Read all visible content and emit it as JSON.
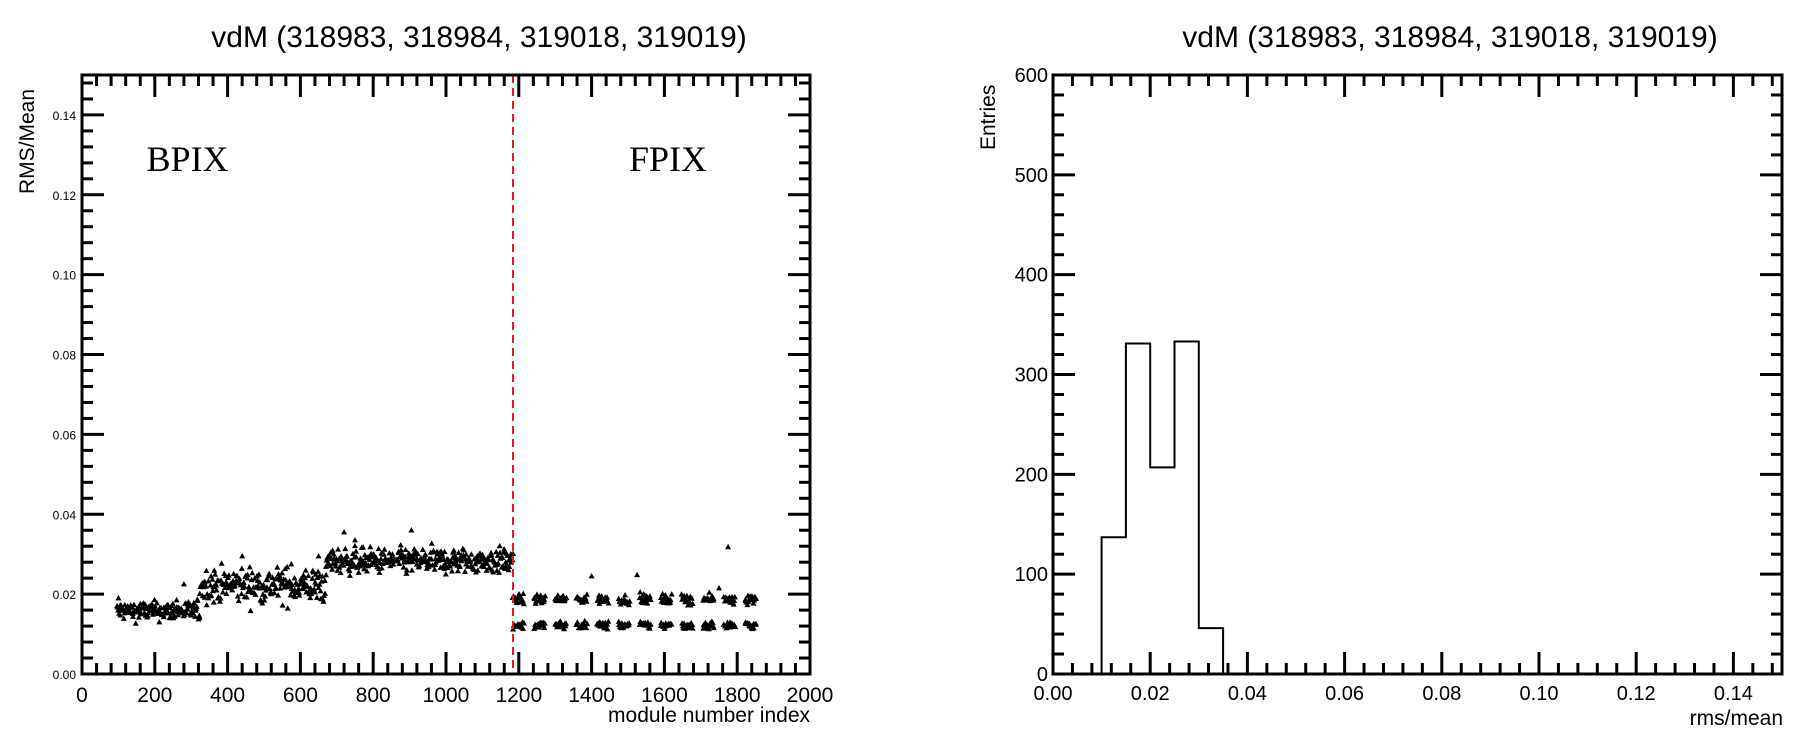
{
  "chart_data": [
    {
      "type": "scatter",
      "title": "vdM (318983, 318984, 319018, 319019)",
      "xlabel": "module number index",
      "ylabel": "RMS/Mean",
      "xlim": [
        0,
        2000
      ],
      "ylim": [
        0,
        0.15
      ],
      "xticks": [
        "0",
        "200",
        "400",
        "600",
        "800",
        "1000",
        "1200",
        "1400",
        "1600",
        "1800",
        "2000"
      ],
      "yticks": [
        "0.00",
        "0.02",
        "0.04",
        "0.06",
        "0.08",
        "0.10",
        "0.12",
        "0.14"
      ],
      "grid": false,
      "marker": "filled triangle",
      "color": "#000000",
      "boundary": {
        "x": 1184,
        "style": "dashed",
        "color": "#e41a1c"
      },
      "annotations": [
        {
          "text": "BPIX",
          "x": 290,
          "y": 0.126
        },
        {
          "text": "FPIX",
          "x": 1610,
          "y": 0.126
        }
      ],
      "segments": [
        {
          "x_range": [
            96,
            324
          ],
          "y_center": 0.0158,
          "y_spread": 0.0012
        },
        {
          "x_range": [
            324,
            672
          ],
          "y_center": 0.0222,
          "y_spread": 0.0022
        },
        {
          "x_range": [
            672,
            1184
          ],
          "y_center": 0.0283,
          "y_spread": 0.0016
        },
        {
          "x_range": [
            1184,
            1856
          ],
          "y_center": 0.0187,
          "y_spread": 0.0006,
          "clustered": true
        },
        {
          "x_range": [
            1184,
            1856
          ],
          "y_center": 0.0122,
          "y_spread": 0.0005,
          "clustered": true
        }
      ],
      "outliers": [
        {
          "x": 100,
          "y": 0.019
        },
        {
          "x": 160,
          "y": 0.0175
        },
        {
          "x": 260,
          "y": 0.0185
        },
        {
          "x": 280,
          "y": 0.0225
        },
        {
          "x": 440,
          "y": 0.0295
        },
        {
          "x": 575,
          "y": 0.0275
        },
        {
          "x": 650,
          "y": 0.0295
        },
        {
          "x": 720,
          "y": 0.0355
        },
        {
          "x": 750,
          "y": 0.0335
        },
        {
          "x": 905,
          "y": 0.036
        },
        {
          "x": 1400,
          "y": 0.0245
        },
        {
          "x": 1525,
          "y": 0.0248
        },
        {
          "x": 1775,
          "y": 0.0318
        },
        {
          "x": 1750,
          "y": 0.0215
        }
      ]
    },
    {
      "type": "bar",
      "title": "vdM (318983, 318984, 319018, 319019)",
      "xlabel": "rms/mean",
      "ylabel": "Entries",
      "xlim": [
        0,
        0.15
      ],
      "ylim": [
        0,
        600
      ],
      "xticks": [
        "0.00",
        "0.02",
        "0.04",
        "0.06",
        "0.08",
        "0.10",
        "0.12",
        "0.14"
      ],
      "yticks": [
        "0",
        "100",
        "200",
        "300",
        "400",
        "500",
        "600"
      ],
      "grid": false,
      "style": "step histogram",
      "color": "#000000",
      "bins": [
        {
          "x0": 0.01,
          "x1": 0.015,
          "value": 137
        },
        {
          "x0": 0.015,
          "x1": 0.02,
          "value": 331
        },
        {
          "x0": 0.02,
          "x1": 0.025,
          "value": 207
        },
        {
          "x0": 0.025,
          "x1": 0.03,
          "value": 333
        },
        {
          "x0": 0.03,
          "x1": 0.035,
          "value": 46
        }
      ]
    }
  ]
}
